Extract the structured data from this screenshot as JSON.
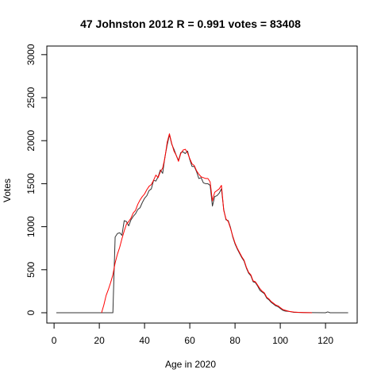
{
  "chart_data": {
    "type": "line",
    "title": "47 Johnston 2012 R = 0.991 votes = 83408",
    "xlabel": "Age in 2020",
    "ylabel": "Votes",
    "xlim": [
      -3.2,
      134
    ],
    "ylim": [
      -120,
      3100
    ],
    "xticks": [
      0,
      20,
      40,
      60,
      80,
      100,
      120
    ],
    "yticks": [
      0,
      500,
      1000,
      1500,
      2000,
      2500,
      3000
    ],
    "grid": false,
    "legend": "none",
    "series": [
      {
        "color": "#333333",
        "points": [
          [
            1,
            0
          ],
          [
            20,
            0
          ],
          [
            26,
            0
          ],
          [
            26.5,
            450
          ],
          [
            27,
            880
          ],
          [
            28,
            920
          ],
          [
            29,
            930
          ],
          [
            30,
            900
          ],
          [
            31,
            1070
          ],
          [
            32,
            1060
          ],
          [
            33,
            1010
          ],
          [
            34,
            1080
          ],
          [
            35,
            1120
          ],
          [
            36,
            1150
          ],
          [
            37,
            1200
          ],
          [
            38,
            1220
          ],
          [
            39,
            1280
          ],
          [
            40,
            1330
          ],
          [
            41,
            1360
          ],
          [
            42,
            1420
          ],
          [
            43,
            1440
          ],
          [
            44,
            1540
          ],
          [
            45,
            1530
          ],
          [
            46,
            1580
          ],
          [
            47,
            1660
          ],
          [
            48,
            1620
          ],
          [
            49,
            1810
          ],
          [
            50,
            1950
          ],
          [
            51,
            2070
          ],
          [
            52,
            1960
          ],
          [
            53,
            1900
          ],
          [
            54,
            1830
          ],
          [
            55,
            1770
          ],
          [
            56,
            1860
          ],
          [
            57,
            1870
          ],
          [
            58,
            1850
          ],
          [
            59,
            1880
          ],
          [
            60,
            1780
          ],
          [
            61,
            1700
          ],
          [
            62,
            1700
          ],
          [
            63,
            1640
          ],
          [
            64,
            1560
          ],
          [
            65,
            1570
          ],
          [
            66,
            1510
          ],
          [
            67,
            1500
          ],
          [
            68,
            1500
          ],
          [
            69,
            1480
          ],
          [
            70,
            1240
          ],
          [
            71,
            1350
          ],
          [
            72,
            1360
          ],
          [
            73,
            1390
          ],
          [
            74,
            1440
          ],
          [
            75,
            1200
          ],
          [
            76,
            1080
          ],
          [
            77,
            1070
          ],
          [
            78,
            990
          ],
          [
            79,
            880
          ],
          [
            80,
            800
          ],
          [
            81,
            740
          ],
          [
            82,
            690
          ],
          [
            83,
            640
          ],
          [
            84,
            600
          ],
          [
            85,
            520
          ],
          [
            86,
            460
          ],
          [
            87,
            430
          ],
          [
            88,
            360
          ],
          [
            89,
            350
          ],
          [
            90,
            310
          ],
          [
            91,
            260
          ],
          [
            92,
            240
          ],
          [
            93,
            220
          ],
          [
            94,
            170
          ],
          [
            95,
            150
          ],
          [
            96,
            120
          ],
          [
            97,
            100
          ],
          [
            98,
            80
          ],
          [
            99,
            70
          ],
          [
            100,
            50
          ],
          [
            101,
            30
          ],
          [
            102,
            20
          ],
          [
            104,
            15
          ],
          [
            106,
            5
          ],
          [
            108,
            3
          ],
          [
            110,
            2
          ],
          [
            120,
            0
          ],
          [
            121,
            10
          ],
          [
            122,
            0
          ],
          [
            130,
            0
          ]
        ]
      },
      {
        "color": "#ff0000",
        "points": [
          [
            21,
            0
          ],
          [
            22,
            90
          ],
          [
            23,
            200
          ],
          [
            24,
            270
          ],
          [
            25,
            350
          ],
          [
            26,
            440
          ],
          [
            27,
            580
          ],
          [
            28,
            680
          ],
          [
            29,
            760
          ],
          [
            30,
            860
          ],
          [
            31,
            950
          ],
          [
            32,
            1030
          ],
          [
            33,
            1060
          ],
          [
            34,
            1100
          ],
          [
            35,
            1160
          ],
          [
            36,
            1190
          ],
          [
            37,
            1260
          ],
          [
            38,
            1310
          ],
          [
            39,
            1350
          ],
          [
            40,
            1380
          ],
          [
            41,
            1430
          ],
          [
            42,
            1470
          ],
          [
            43,
            1490
          ],
          [
            44,
            1540
          ],
          [
            45,
            1600
          ],
          [
            46,
            1570
          ],
          [
            47,
            1640
          ],
          [
            48,
            1680
          ],
          [
            49,
            1800
          ],
          [
            50,
            1980
          ],
          [
            51,
            2080
          ],
          [
            52,
            1970
          ],
          [
            53,
            1880
          ],
          [
            54,
            1830
          ],
          [
            55,
            1760
          ],
          [
            56,
            1850
          ],
          [
            57,
            1890
          ],
          [
            58,
            1900
          ],
          [
            59,
            1860
          ],
          [
            60,
            1790
          ],
          [
            61,
            1730
          ],
          [
            62,
            1710
          ],
          [
            63,
            1650
          ],
          [
            64,
            1610
          ],
          [
            65,
            1580
          ],
          [
            66,
            1570
          ],
          [
            67,
            1560
          ],
          [
            68,
            1560
          ],
          [
            69,
            1520
          ],
          [
            70,
            1300
          ],
          [
            71,
            1400
          ],
          [
            72,
            1420
          ],
          [
            73,
            1440
          ],
          [
            74,
            1480
          ],
          [
            75,
            1190
          ],
          [
            76,
            1090
          ],
          [
            77,
            1060
          ],
          [
            78,
            980
          ],
          [
            79,
            890
          ],
          [
            80,
            810
          ],
          [
            81,
            750
          ],
          [
            82,
            700
          ],
          [
            83,
            650
          ],
          [
            84,
            610
          ],
          [
            85,
            530
          ],
          [
            86,
            470
          ],
          [
            87,
            440
          ],
          [
            88,
            370
          ],
          [
            89,
            360
          ],
          [
            90,
            320
          ],
          [
            91,
            280
          ],
          [
            92,
            250
          ],
          [
            93,
            230
          ],
          [
            94,
            180
          ],
          [
            95,
            160
          ],
          [
            96,
            130
          ],
          [
            97,
            110
          ],
          [
            98,
            90
          ],
          [
            99,
            80
          ],
          [
            100,
            60
          ],
          [
            101,
            40
          ],
          [
            102,
            30
          ],
          [
            104,
            15
          ],
          [
            106,
            8
          ],
          [
            108,
            4
          ],
          [
            110,
            2
          ],
          [
            112,
            1
          ],
          [
            114,
            0
          ]
        ]
      }
    ]
  }
}
